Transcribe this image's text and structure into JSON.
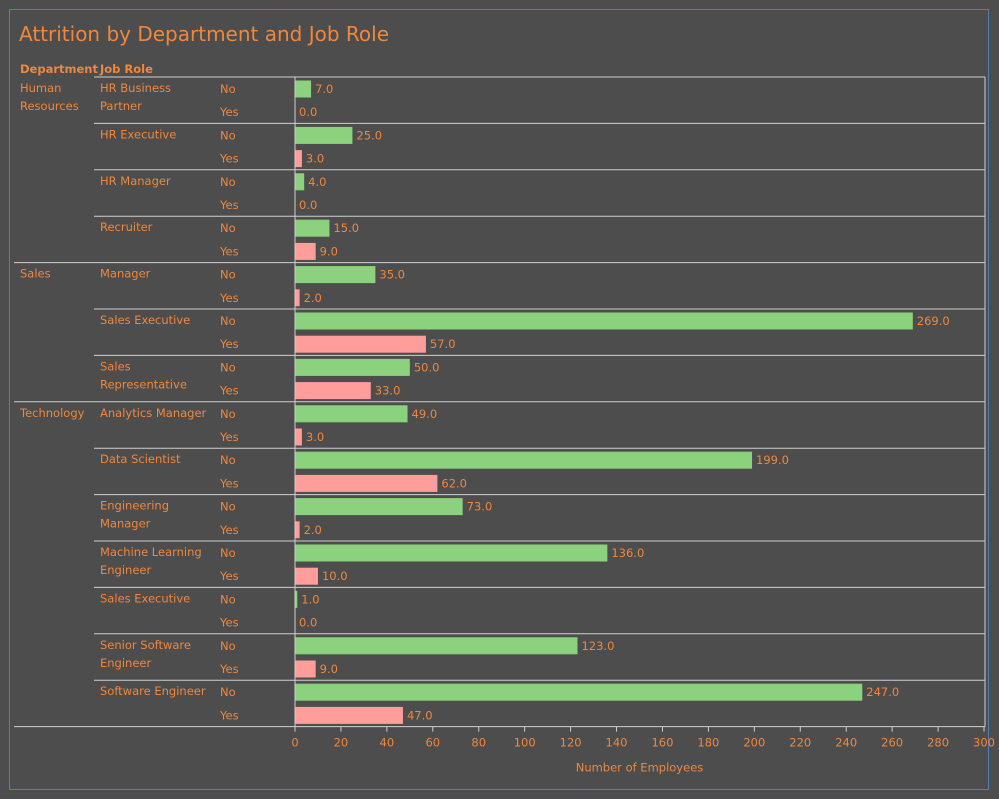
{
  "title": "Attrition by Department and Job Role",
  "headers": {
    "department": "Department",
    "job_role": "Job Role"
  },
  "colors": {
    "background": "#4d4d4d",
    "text": "#f0873c",
    "bar_no": "#8cd17d",
    "bar_yes": "#ff9d9a",
    "gridline": "#d0d0d0",
    "frame": "#4f7fb5"
  },
  "chart_data": {
    "type": "bar",
    "orientation": "horizontal",
    "xlabel": "Number of Employees",
    "xlim": [
      0,
      300
    ],
    "xticks": [
      0,
      20,
      40,
      60,
      80,
      100,
      120,
      140,
      160,
      180,
      200,
      220,
      240,
      260,
      280,
      300
    ],
    "series_labels": [
      "No",
      "Yes"
    ],
    "departments": [
      {
        "name": "Human Resources",
        "roles": [
          {
            "role": "HR Business Partner",
            "No": 7,
            "Yes": 0
          },
          {
            "role": "HR Executive",
            "No": 25,
            "Yes": 3
          },
          {
            "role": "HR Manager",
            "No": 4,
            "Yes": 0
          },
          {
            "role": "Recruiter",
            "No": 15,
            "Yes": 9
          }
        ]
      },
      {
        "name": "Sales",
        "roles": [
          {
            "role": "Manager",
            "No": 35,
            "Yes": 2
          },
          {
            "role": "Sales Executive",
            "No": 269,
            "Yes": 57
          },
          {
            "role": "Sales Representative",
            "No": 50,
            "Yes": 33
          }
        ]
      },
      {
        "name": "Technology",
        "roles": [
          {
            "role": "Analytics Manager",
            "No": 49,
            "Yes": 3
          },
          {
            "role": "Data Scientist",
            "No": 199,
            "Yes": 62
          },
          {
            "role": "Engineering Manager",
            "No": 73,
            "Yes": 2
          },
          {
            "role": "Machine Learning Engineer",
            "No": 136,
            "Yes": 10
          },
          {
            "role": "Sales Executive",
            "No": 1,
            "Yes": 0
          },
          {
            "role": "Senior Software Engineer",
            "No": 123,
            "Yes": 9
          },
          {
            "role": "Software Engineer",
            "No": 247,
            "Yes": 47
          }
        ]
      }
    ]
  }
}
